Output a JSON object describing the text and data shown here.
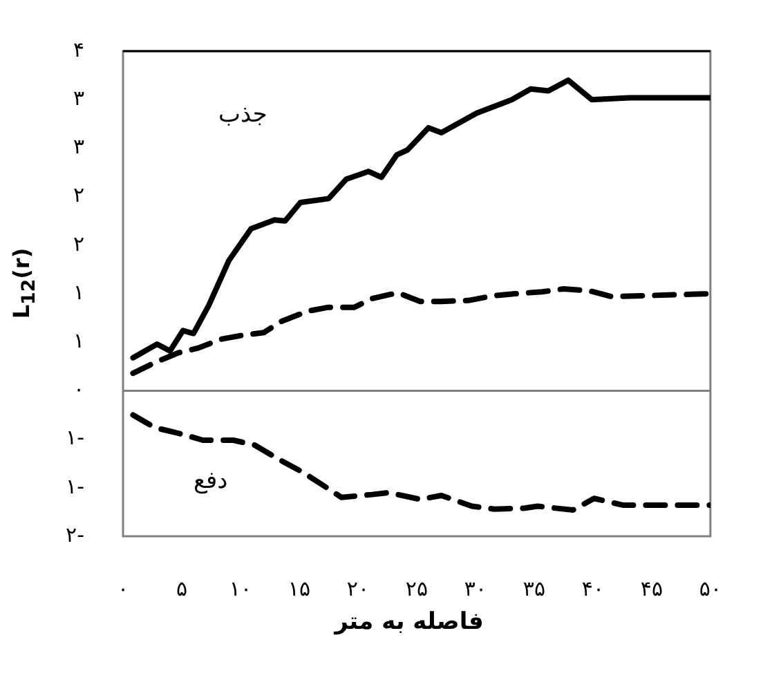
{
  "chart_data": {
    "type": "line",
    "xlabel": "فاصله به متر",
    "ylabel": "L$_{12}$(r)",
    "xlim": [
      0,
      50
    ],
    "ylim": [
      -1.5,
      3.5
    ],
    "xticks": [
      {
        "value": 0,
        "label": "۰"
      },
      {
        "value": 5,
        "label": "۵"
      },
      {
        "value": 10,
        "label": "۱۰"
      },
      {
        "value": 15,
        "label": "۱۵"
      },
      {
        "value": 20,
        "label": "۲۰"
      },
      {
        "value": 25,
        "label": "۲۵"
      },
      {
        "value": 30,
        "label": "۳۰"
      },
      {
        "value": 35,
        "label": "۳۵"
      },
      {
        "value": 40,
        "label": "۴۰"
      },
      {
        "value": 45,
        "label": "۴۵"
      },
      {
        "value": 50,
        "label": "۵۰"
      }
    ],
    "yticks": [
      {
        "value": 3.5,
        "label": "۴"
      },
      {
        "value": 3,
        "label": "۳"
      },
      {
        "value": 2.5,
        "label": "۳"
      },
      {
        "value": 2,
        "label": "۲"
      },
      {
        "value": 1.5,
        "label": "۲"
      },
      {
        "value": 1,
        "label": "۱"
      },
      {
        "value": 0.5,
        "label": "۱"
      },
      {
        "value": 0,
        "label": "۰"
      },
      {
        "value": -0.5,
        "label": "۱-"
      },
      {
        "value": -1,
        "label": "۱-"
      },
      {
        "value": -1.5,
        "label": "۲-"
      }
    ],
    "grid": false,
    "legend": false,
    "marker": "none",
    "ref_lines": [
      {
        "axis": "y",
        "value": 0,
        "color": "#808080"
      }
    ],
    "annotations": [
      "جذب",
      "دفع"
    ],
    "series": [
      {
        "color": "#000000",
        "line_style": "solid",
        "x": [
          0.85,
          2.9,
          4.0,
          5.1,
          6.0,
          7.3,
          9.0,
          10.9,
          12.9,
          13.8,
          15.1,
          17.5,
          19.0,
          20.9,
          22.0,
          23.3,
          24.2,
          26.0,
          27.1,
          30.1,
          33.1,
          34.7,
          36.2,
          37.9,
          39.9,
          43.1,
          50
        ],
        "values": [
          0.34,
          0.48,
          0.41,
          0.62,
          0.59,
          0.88,
          1.34,
          1.67,
          1.76,
          1.75,
          1.94,
          1.98,
          2.18,
          2.26,
          2.2,
          2.43,
          2.48,
          2.71,
          2.66,
          2.86,
          3.0,
          3.11,
          3.09,
          3.2,
          3.0,
          3.02,
          3.02
        ]
      },
      {
        "color": "#000000",
        "line_style": "dashed",
        "x": [
          0.85,
          2.7,
          4.7,
          6.4,
          8.3,
          10.1,
          12.0,
          13.4,
          15.7,
          17.5,
          19.7,
          21.2,
          23.4,
          25.3,
          27.1,
          29.4,
          31.6,
          33.4,
          35.7,
          37.5,
          39.7,
          41.6,
          50
        ],
        "values": [
          0.18,
          0.29,
          0.39,
          0.44,
          0.53,
          0.57,
          0.6,
          0.71,
          0.82,
          0.86,
          0.86,
          0.95,
          1.01,
          0.92,
          0.92,
          0.93,
          0.98,
          1.0,
          1.02,
          1.05,
          1.03,
          0.97,
          1.0
        ]
      },
      {
        "color": "#000000",
        "line_style": "dashed",
        "x": [
          0.85,
          2.7,
          5.1,
          6.8,
          9.4,
          11.2,
          13.3,
          15.3,
          17.1,
          18.6,
          21.2,
          22.6,
          25.3,
          27.1,
          29.7,
          31.6,
          34.2,
          35.3,
          38.3,
          40.1,
          42.6,
          50
        ],
        "values": [
          -0.25,
          -0.38,
          -0.45,
          -0.51,
          -0.51,
          -0.56,
          -0.71,
          -0.84,
          -0.98,
          -1.1,
          -1.07,
          -1.05,
          -1.12,
          -1.08,
          -1.19,
          -1.22,
          -1.21,
          -1.19,
          -1.23,
          -1.11,
          -1.18,
          -1.18
        ]
      }
    ]
  }
}
